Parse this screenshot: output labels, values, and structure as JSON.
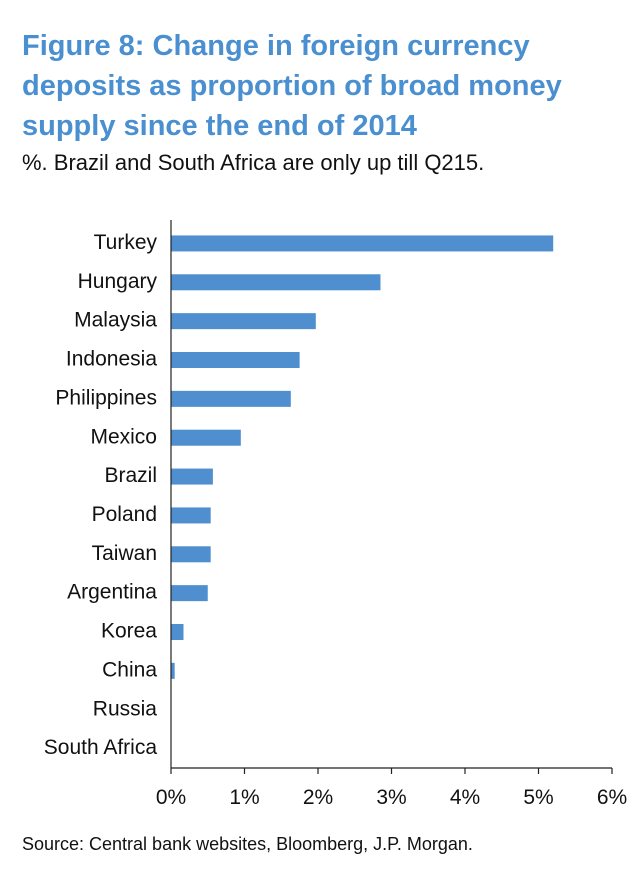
{
  "header": {
    "title": "Figure 8: Change in foreign currency deposits as proportion of broad money supply since the end of 2014",
    "subtitle": "%. Brazil and South Africa are only up till Q215."
  },
  "footer": {
    "source": "Source: Central bank websites, Bloomberg, J.P. Morgan."
  },
  "colors": {
    "title": "#4a8fd0",
    "bar": "#4f8fcf",
    "axis": "#222222"
  },
  "chart_data": {
    "type": "bar",
    "orientation": "horizontal",
    "title": "Figure 8: Change in foreign currency deposits as proportion of broad money supply since the end of 2014",
    "subtitle": "%. Brazil and South Africa are only up till Q215.",
    "categories": [
      "Turkey",
      "Hungary",
      "Malaysia",
      "Indonesia",
      "Philippines",
      "Mexico",
      "Brazil",
      "Poland",
      "Taiwan",
      "Argentina",
      "Korea",
      "China",
      "Russia",
      "South Africa"
    ],
    "values": [
      5.2,
      2.85,
      1.97,
      1.75,
      1.63,
      0.95,
      0.57,
      0.54,
      0.54,
      0.5,
      0.17,
      0.05,
      0,
      0
    ],
    "xlim": [
      0,
      6
    ],
    "xticks": [
      0,
      1,
      2,
      3,
      4,
      5,
      6
    ],
    "xtick_labels": [
      "0%",
      "1%",
      "2%",
      "3%",
      "4%",
      "5%",
      "6%"
    ],
    "xlabel": "",
    "ylabel": "",
    "grid": false,
    "legend": "none"
  }
}
